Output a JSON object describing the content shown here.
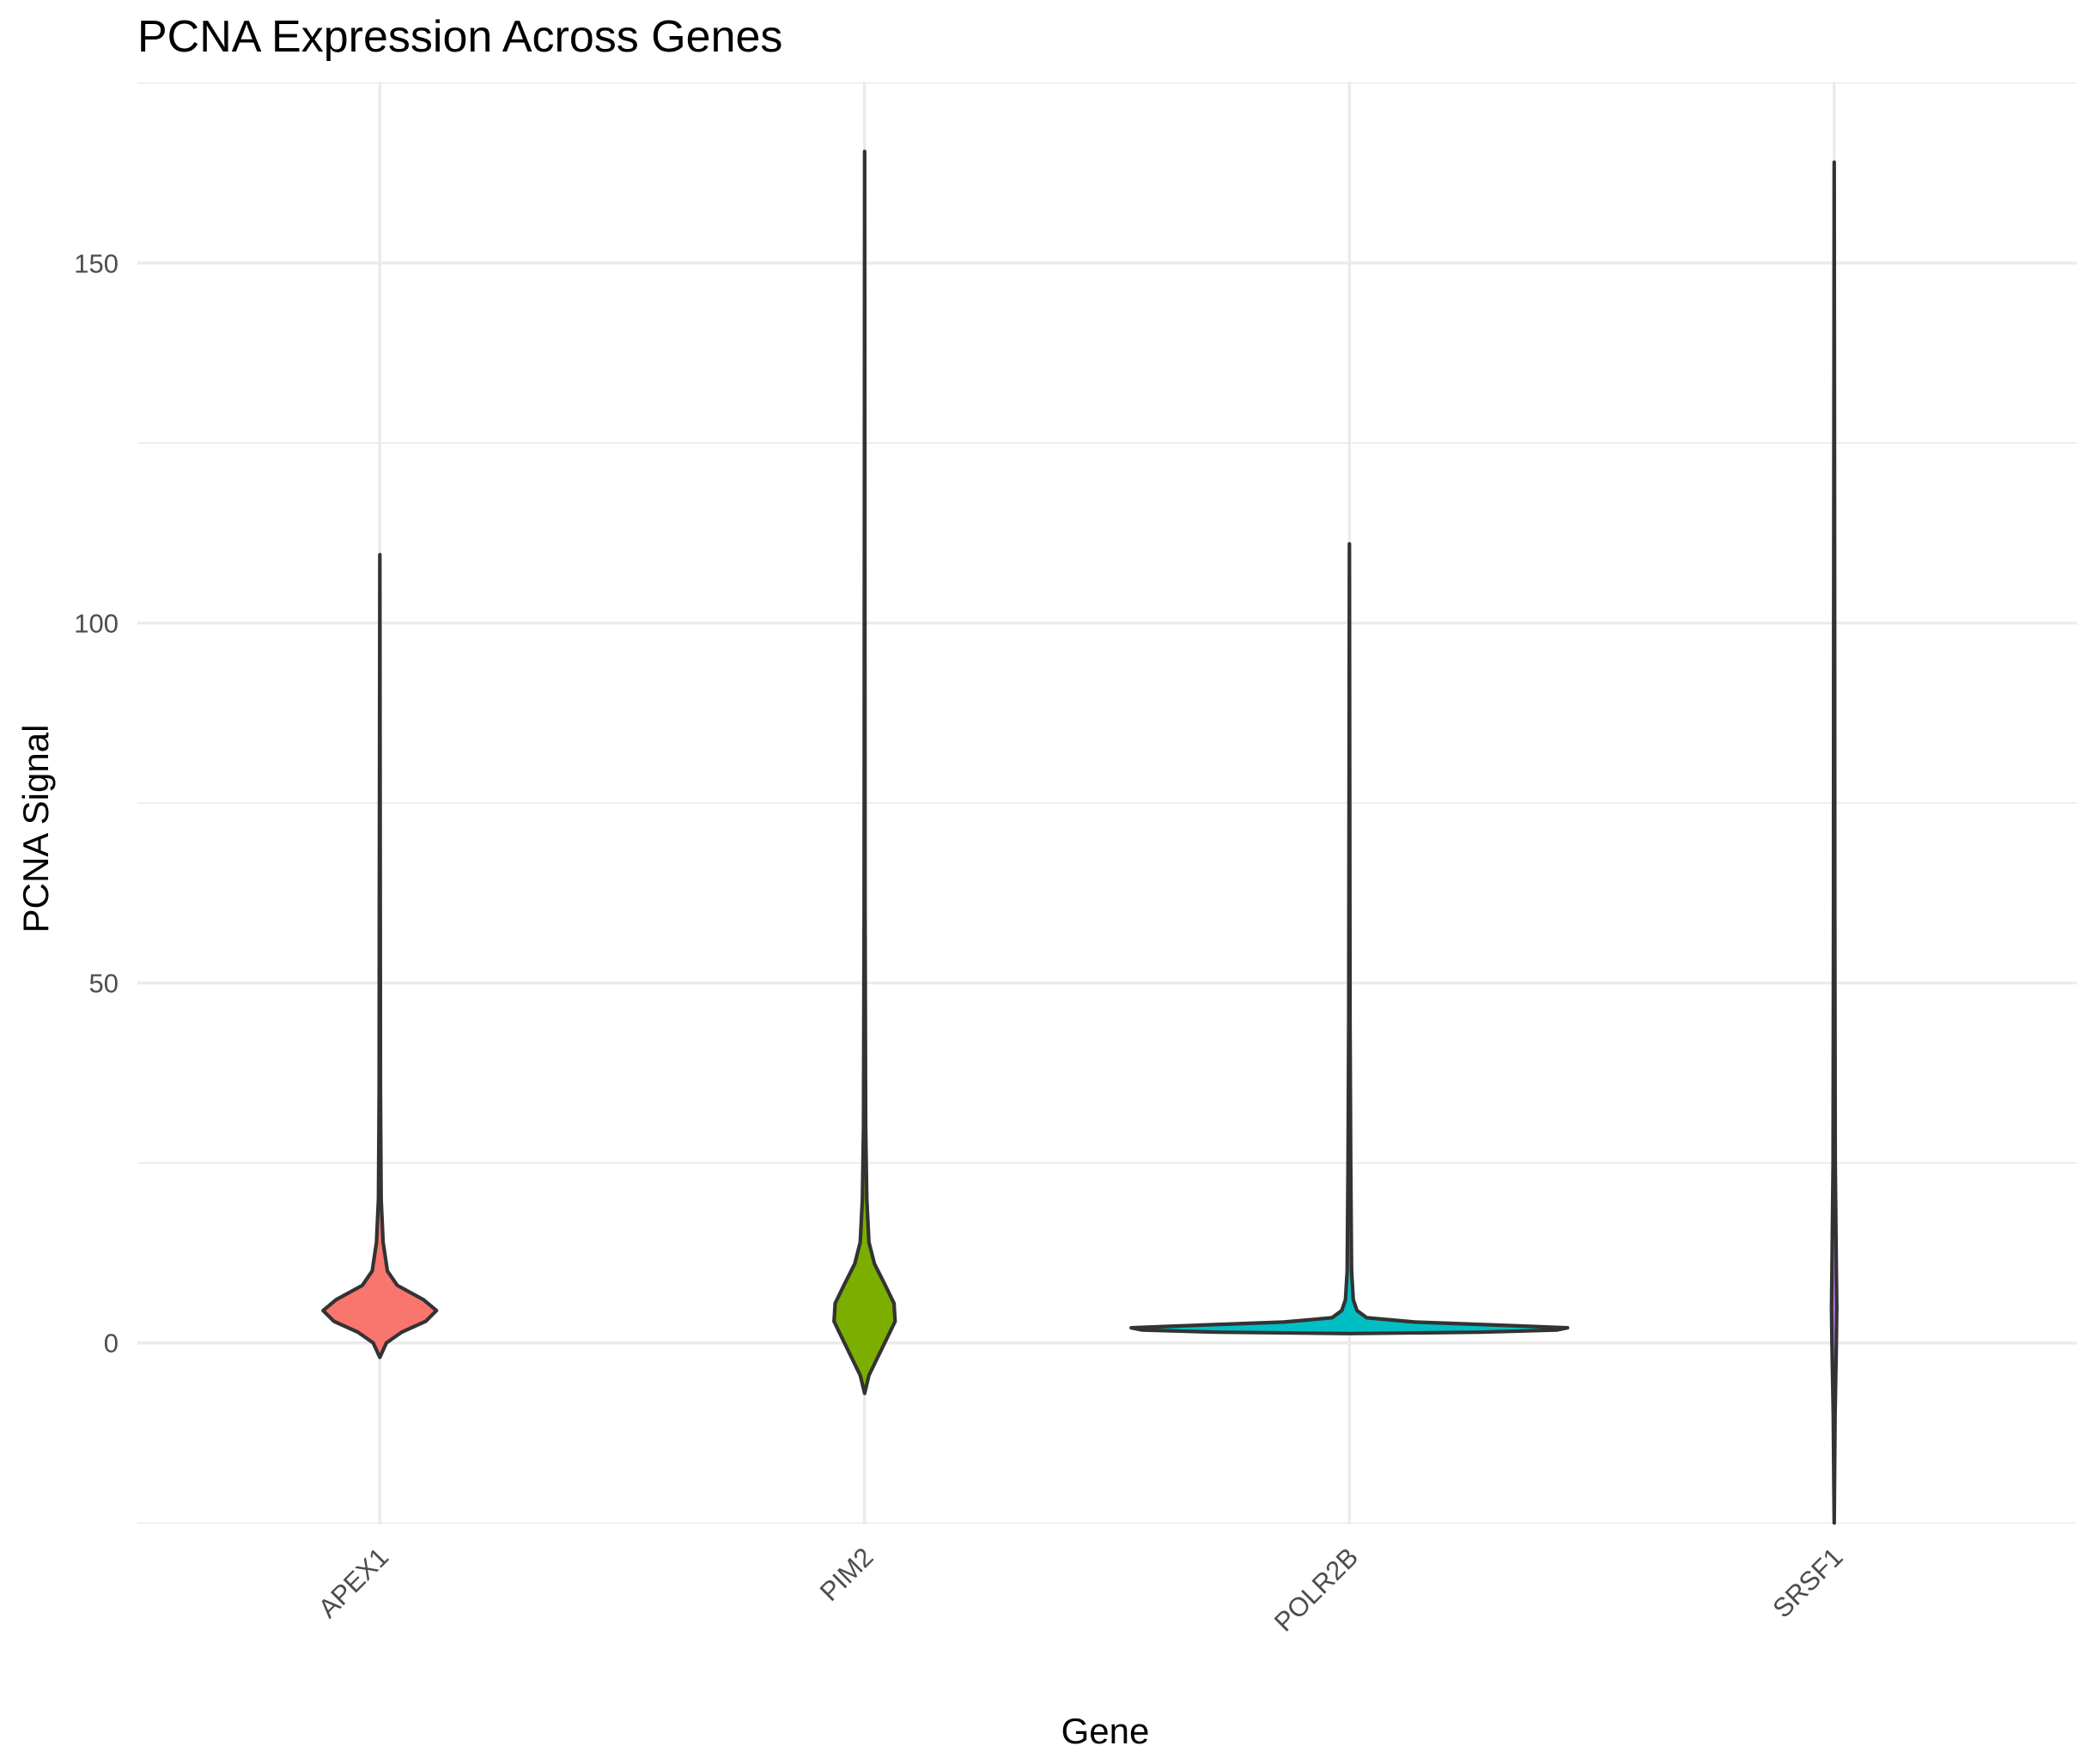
{
  "chart_data": {
    "type": "violin",
    "title": "PCNA Expression Across Genes",
    "xlabel": "Gene",
    "ylabel": "PCNA Signal",
    "ylim": [
      -25.2,
      175.2
    ],
    "y_ticks": [
      0,
      50,
      100,
      150
    ],
    "y_tick_labels": [
      "0",
      "50",
      "100",
      "150"
    ],
    "y_minor_ticks": [
      -25,
      25,
      75,
      125,
      175
    ],
    "grid": true,
    "legend": "none",
    "categories": [
      "APEX1",
      "PIM2",
      "POLR2B",
      "SRSF1"
    ],
    "series": [
      {
        "category": "APEX1",
        "color": "#F8766D",
        "min": -2.0,
        "max": 109.5,
        "density": [
          [
            -2.0,
            0.0
          ],
          [
            0.0,
            0.03
          ],
          [
            1.5,
            0.1
          ],
          [
            3.0,
            0.21
          ],
          [
            4.5,
            0.26
          ],
          [
            6.0,
            0.2
          ],
          [
            8.0,
            0.08
          ],
          [
            10.0,
            0.035
          ],
          [
            14.0,
            0.015
          ],
          [
            20.0,
            0.006
          ],
          [
            35.0,
            0.003
          ],
          [
            60.0,
            0.002
          ],
          [
            109.5,
            0.0
          ]
        ]
      },
      {
        "category": "PIM2",
        "color": "#7CAE00",
        "min": -7.0,
        "max": 165.5,
        "density": [
          [
            -7.0,
            0.0
          ],
          [
            -4.5,
            0.02
          ],
          [
            -2.0,
            0.06
          ],
          [
            0.5,
            0.1
          ],
          [
            3.0,
            0.14
          ],
          [
            5.5,
            0.135
          ],
          [
            8.0,
            0.095
          ],
          [
            11.0,
            0.045
          ],
          [
            14.0,
            0.02
          ],
          [
            20.0,
            0.01
          ],
          [
            30.0,
            0.005
          ],
          [
            60.0,
            0.002
          ],
          [
            165.5,
            0.0
          ]
        ]
      },
      {
        "category": "POLR2B",
        "color": "#00BFC4",
        "min": 1.3,
        "max": 111.0,
        "density": [
          [
            1.3,
            0.0
          ],
          [
            1.5,
            0.6
          ],
          [
            1.8,
            0.95
          ],
          [
            2.1,
            1.0
          ],
          [
            2.4,
            0.75
          ],
          [
            2.9,
            0.3
          ],
          [
            3.5,
            0.08
          ],
          [
            4.5,
            0.035
          ],
          [
            6.0,
            0.018
          ],
          [
            10.0,
            0.01
          ],
          [
            25.0,
            0.006
          ],
          [
            45.0,
            0.003
          ],
          [
            111.0,
            0.0
          ]
        ]
      },
      {
        "category": "SRSF1",
        "color": "#C77CFF",
        "min": -25.0,
        "max": 164.0,
        "density": [
          [
            -25.0,
            0.0
          ],
          [
            -10.0,
            0.004
          ],
          [
            0.0,
            0.01
          ],
          [
            5.0,
            0.012
          ],
          [
            10.0,
            0.01
          ],
          [
            25.0,
            0.005
          ],
          [
            60.0,
            0.003
          ],
          [
            100.0,
            0.002
          ],
          [
            164.0,
            0.0
          ]
        ]
      }
    ]
  }
}
